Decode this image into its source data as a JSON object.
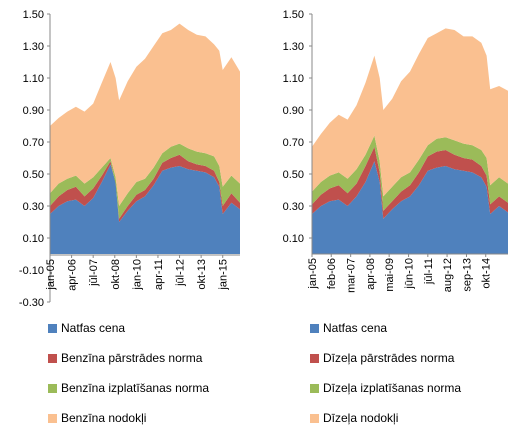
{
  "chart_data": [
    {
      "type": "area",
      "stacked": true,
      "ylim": [
        -0.3,
        1.5
      ],
      "yticks": [
        "-0.30",
        "-0.10",
        "0.10",
        "0.30",
        "0.50",
        "0.70",
        "0.90",
        "1.10",
        "1.30",
        "1.50"
      ],
      "xlim": [
        2005.0,
        2016.0
      ],
      "xticks": [
        {
          "label": "jan-05",
          "x": 2005.0
        },
        {
          "label": "apr-06",
          "x": 2006.25
        },
        {
          "label": "jūl-07",
          "x": 2007.5
        },
        {
          "label": "okt-08",
          "x": 2008.75
        },
        {
          "label": "jan-10",
          "x": 2010.0
        },
        {
          "label": "apr-11",
          "x": 2011.25
        },
        {
          "label": "jūl-12",
          "x": 2012.5
        },
        {
          "label": "okt-13",
          "x": 2013.75
        },
        {
          "label": "jan-15",
          "x": 2015.0
        }
      ],
      "x": [
        2005.0,
        2005.5,
        2006.0,
        2006.5,
        2007.0,
        2007.5,
        2008.0,
        2008.5,
        2008.8,
        2009.0,
        2009.5,
        2010.0,
        2010.5,
        2011.0,
        2011.5,
        2012.0,
        2012.5,
        2013.0,
        2013.5,
        2014.0,
        2014.5,
        2014.8,
        2015.0,
        2015.5,
        2016.0
      ],
      "series": [
        {
          "name": "Natfas cena",
          "color": "#4f81bd",
          "values": [
            0.25,
            0.3,
            0.33,
            0.34,
            0.3,
            0.35,
            0.45,
            0.56,
            0.45,
            0.2,
            0.27,
            0.33,
            0.36,
            0.43,
            0.52,
            0.54,
            0.55,
            0.53,
            0.52,
            0.51,
            0.48,
            0.42,
            0.25,
            0.32,
            0.28
          ]
        },
        {
          "name": "Benzīna pārstrādes norma",
          "color": "#c0504d",
          "values": [
            0.05,
            0.06,
            0.07,
            0.08,
            0.06,
            0.06,
            0.04,
            0.02,
            -0.01,
            0.02,
            0.03,
            0.04,
            0.04,
            0.04,
            0.05,
            0.06,
            0.07,
            0.05,
            0.04,
            0.04,
            0.04,
            0.03,
            0.05,
            0.06,
            0.04
          ]
        },
        {
          "name": "Benzīna izplatīšanas norma",
          "color": "#9bbb59",
          "values": [
            0.08,
            0.08,
            0.07,
            0.07,
            0.08,
            0.07,
            0.05,
            0.02,
            0.04,
            0.08,
            0.08,
            0.08,
            0.07,
            0.07,
            0.06,
            0.07,
            0.07,
            0.08,
            0.08,
            0.08,
            0.09,
            0.1,
            0.12,
            0.11,
            0.12
          ]
        },
        {
          "name": "Benzīna nodokļi",
          "color": "#fac090",
          "values": [
            0.42,
            0.41,
            0.42,
            0.43,
            0.45,
            0.46,
            0.53,
            0.6,
            0.62,
            0.66,
            0.7,
            0.72,
            0.75,
            0.76,
            0.75,
            0.73,
            0.75,
            0.74,
            0.73,
            0.73,
            0.7,
            0.72,
            0.73,
            0.74,
            0.7
          ]
        }
      ]
    },
    {
      "type": "area",
      "stacked": true,
      "ylim": [
        0,
        1.5
      ],
      "yticks": [
        "0.10",
        "0.30",
        "0.50",
        "0.70",
        "0.90",
        "1.10",
        "1.30",
        "1.50"
      ],
      "xlim": [
        2005.0,
        2016.0
      ],
      "xticks": [
        {
          "label": "jan-05",
          "x": 2005.0
        },
        {
          "label": "feb-06",
          "x": 2006.08
        },
        {
          "label": "mar-07",
          "x": 2007.17
        },
        {
          "label": "apr-08",
          "x": 2008.25
        },
        {
          "label": "mai-09",
          "x": 2009.33
        },
        {
          "label": "jūn-10",
          "x": 2010.42
        },
        {
          "label": "jūl-11",
          "x": 2011.5
        },
        {
          "label": "aug-12",
          "x": 2012.58
        },
        {
          "label": "sep-13",
          "x": 2013.67
        },
        {
          "label": "okt-14",
          "x": 2014.75
        }
      ],
      "x": [
        2005.0,
        2005.5,
        2006.0,
        2006.5,
        2007.0,
        2007.5,
        2008.0,
        2008.5,
        2008.8,
        2009.0,
        2009.5,
        2010.0,
        2010.5,
        2011.0,
        2011.5,
        2012.0,
        2012.5,
        2013.0,
        2013.5,
        2014.0,
        2014.5,
        2014.8,
        2015.0,
        2015.5,
        2016.0
      ],
      "series": [
        {
          "name": "Natfas cena",
          "color": "#4f81bd",
          "values": [
            0.25,
            0.3,
            0.33,
            0.34,
            0.3,
            0.36,
            0.45,
            0.58,
            0.45,
            0.22,
            0.28,
            0.33,
            0.36,
            0.43,
            0.52,
            0.54,
            0.55,
            0.53,
            0.52,
            0.51,
            0.48,
            0.42,
            0.25,
            0.3,
            0.26
          ]
        },
        {
          "name": "Dīzeļa pārstrādes norma",
          "color": "#c0504d",
          "values": [
            0.06,
            0.07,
            0.08,
            0.09,
            0.08,
            0.08,
            0.1,
            0.09,
            0.06,
            0.05,
            0.05,
            0.06,
            0.07,
            0.08,
            0.09,
            0.1,
            0.1,
            0.09,
            0.08,
            0.08,
            0.07,
            0.07,
            0.06,
            0.06,
            0.06
          ]
        },
        {
          "name": "Dīzeļa izplatīšanas norma",
          "color": "#9bbb59",
          "values": [
            0.08,
            0.08,
            0.08,
            0.08,
            0.09,
            0.09,
            0.07,
            0.07,
            0.07,
            0.09,
            0.09,
            0.09,
            0.08,
            0.08,
            0.07,
            0.08,
            0.08,
            0.09,
            0.09,
            0.09,
            0.1,
            0.11,
            0.12,
            0.12,
            0.12
          ]
        },
        {
          "name": "Dīzeļa nodokļi",
          "color": "#fac090",
          "values": [
            0.28,
            0.3,
            0.33,
            0.36,
            0.37,
            0.4,
            0.45,
            0.5,
            0.52,
            0.54,
            0.55,
            0.6,
            0.63,
            0.66,
            0.67,
            0.66,
            0.68,
            0.69,
            0.67,
            0.68,
            0.67,
            0.64,
            0.6,
            0.57,
            0.58
          ]
        }
      ]
    }
  ],
  "legends": [
    [
      {
        "label": "Natfas cena",
        "color": "#4f81bd"
      },
      {
        "label": "Benzīna pārstrādes norma",
        "color": "#c0504d"
      },
      {
        "label": "Benzīna izplatīšanas norma",
        "color": "#9bbb59"
      },
      {
        "label": "Benzīna nodokļi",
        "color": "#fac090"
      }
    ],
    [
      {
        "label": "Natfas cena",
        "color": "#4f81bd"
      },
      {
        "label": "Dīzeļa pārstrādes norma",
        "color": "#c0504d"
      },
      {
        "label": "Dīzeļa izplatīšanas norma",
        "color": "#9bbb59"
      },
      {
        "label": "Dīzeļa nodokļi",
        "color": "#fac090"
      }
    ]
  ]
}
